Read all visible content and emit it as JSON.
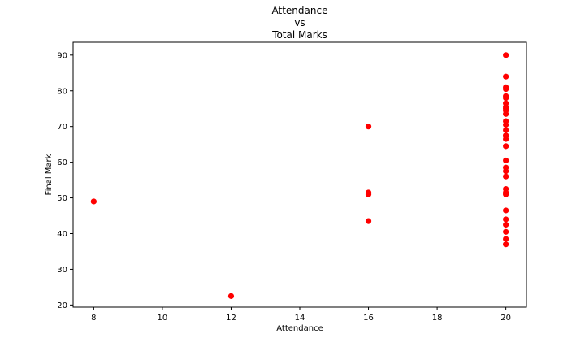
{
  "chart_data": {
    "type": "scatter",
    "title_lines": [
      "Attendance",
      "vs",
      "Total Marks"
    ],
    "xlabel": "Attendance",
    "ylabel": "Final Mark",
    "xlim": [
      7.4,
      20.6
    ],
    "ylim": [
      19.4,
      93.6
    ],
    "xticks": [
      8,
      10,
      12,
      14,
      16,
      18,
      20
    ],
    "yticks": [
      20,
      30,
      40,
      50,
      60,
      70,
      80,
      90
    ],
    "grid": false,
    "marker_color": "#ff0000",
    "points": [
      {
        "x": 8,
        "y": 49.0
      },
      {
        "x": 12,
        "y": 22.5
      },
      {
        "x": 16,
        "y": 70.0
      },
      {
        "x": 16,
        "y": 51.5
      },
      {
        "x": 16,
        "y": 51.0
      },
      {
        "x": 16,
        "y": 43.5
      },
      {
        "x": 20,
        "y": 90.0
      },
      {
        "x": 20,
        "y": 84.0
      },
      {
        "x": 20,
        "y": 81.0
      },
      {
        "x": 20,
        "y": 80.5
      },
      {
        "x": 20,
        "y": 78.5
      },
      {
        "x": 20,
        "y": 78.0
      },
      {
        "x": 20,
        "y": 76.5
      },
      {
        "x": 20,
        "y": 75.5
      },
      {
        "x": 20,
        "y": 75.0
      },
      {
        "x": 20,
        "y": 74.5
      },
      {
        "x": 20,
        "y": 73.5
      },
      {
        "x": 20,
        "y": 71.5
      },
      {
        "x": 20,
        "y": 70.5
      },
      {
        "x": 20,
        "y": 69.0
      },
      {
        "x": 20,
        "y": 67.5
      },
      {
        "x": 20,
        "y": 66.5
      },
      {
        "x": 20,
        "y": 64.5
      },
      {
        "x": 20,
        "y": 60.5
      },
      {
        "x": 20,
        "y": 58.5
      },
      {
        "x": 20,
        "y": 57.5
      },
      {
        "x": 20,
        "y": 56.0
      },
      {
        "x": 20,
        "y": 52.5
      },
      {
        "x": 20,
        "y": 51.5
      },
      {
        "x": 20,
        "y": 51.0
      },
      {
        "x": 20,
        "y": 46.5
      },
      {
        "x": 20,
        "y": 44.0
      },
      {
        "x": 20,
        "y": 42.5
      },
      {
        "x": 20,
        "y": 40.5
      },
      {
        "x": 20,
        "y": 38.5
      },
      {
        "x": 20,
        "y": 37.0
      }
    ]
  }
}
